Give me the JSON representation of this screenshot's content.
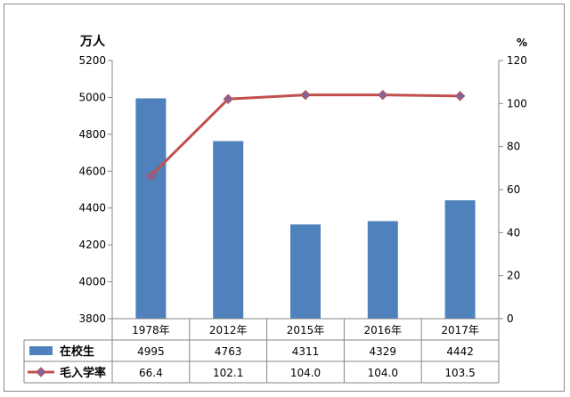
{
  "chart_data": {
    "type": "bar",
    "left_axis_unit": "万人",
    "right_axis_unit": "%",
    "categories": [
      "1978年",
      "2012年",
      "2015年",
      "2016年",
      "2017年"
    ],
    "series": [
      {
        "name": "在校生",
        "kind": "bar",
        "axis": "left",
        "color": "#4f81bd",
        "values": [
          4995,
          4763,
          4311,
          4329,
          4442
        ],
        "labels": [
          "4995",
          "4763",
          "4311",
          "4329",
          "4442"
        ]
      },
      {
        "name": "毛入学率",
        "kind": "line",
        "axis": "right",
        "color": "#c0504d",
        "marker_color": "#8064a2",
        "values": [
          66.4,
          102.1,
          104.0,
          104.0,
          103.5
        ],
        "labels": [
          "66.4",
          "102.1",
          "104.0",
          "104.0",
          "103.5"
        ]
      }
    ],
    "left_ylim": [
      3800,
      5200
    ],
    "left_ticks": [
      "3800",
      "4000",
      "4200",
      "4400",
      "4600",
      "4800",
      "5000",
      "5200"
    ],
    "right_ylim": [
      0,
      120
    ],
    "right_ticks": [
      "0",
      "20",
      "40",
      "60",
      "80",
      "100",
      "120"
    ],
    "grid": false,
    "legend_placement": "data-table"
  }
}
